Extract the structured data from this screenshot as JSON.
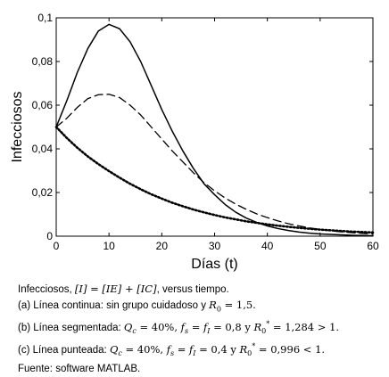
{
  "chart_data": {
    "type": "line",
    "xlabel": "Días (t)",
    "ylabel": "Infecciosos",
    "xlim": [
      0,
      60
    ],
    "ylim": [
      0,
      0.1
    ],
    "xticks": [
      0,
      10,
      20,
      30,
      40,
      50,
      60
    ],
    "yticks": [
      0,
      0.02,
      0.04,
      0.06,
      0.08,
      0.1
    ],
    "xtick_labels": [
      "0",
      "10",
      "20",
      "30",
      "40",
      "50",
      "60"
    ],
    "ytick_labels": [
      "0",
      "0,02",
      "0,04",
      "0,06",
      "0,08",
      "0,1"
    ],
    "grid": false,
    "x": [
      0,
      2,
      4,
      6,
      8,
      10,
      12,
      14,
      16,
      18,
      20,
      22,
      24,
      26,
      28,
      30,
      32,
      34,
      36,
      38,
      40,
      42,
      44,
      46,
      48,
      50,
      52,
      54,
      56,
      58,
      60
    ],
    "series": [
      {
        "style": "solid",
        "values": [
          0.05,
          0.062,
          0.075,
          0.086,
          0.094,
          0.097,
          0.095,
          0.089,
          0.08,
          0.069,
          0.058,
          0.048,
          0.039,
          0.031,
          0.024,
          0.019,
          0.0145,
          0.011,
          0.0083,
          0.0063,
          0.0047,
          0.0035,
          0.0026,
          0.0019,
          0.0014,
          0.001,
          0.0008,
          0.0006,
          0.0004,
          0.0003,
          0.0002
        ]
      },
      {
        "style": "dashed",
        "values": [
          0.05,
          0.054,
          0.059,
          0.063,
          0.0648,
          0.065,
          0.0635,
          0.06,
          0.0555,
          0.05,
          0.0445,
          0.039,
          0.034,
          0.029,
          0.0245,
          0.0208,
          0.0175,
          0.0147,
          0.0123,
          0.0102,
          0.0085,
          0.007,
          0.0057,
          0.0047,
          0.0038,
          0.0031,
          0.0025,
          0.002,
          0.0016,
          0.0013,
          0.001
        ]
      },
      {
        "style": "dotted",
        "values": [
          0.05,
          0.045,
          0.0405,
          0.0365,
          0.033,
          0.0298,
          0.0268,
          0.024,
          0.0215,
          0.0192,
          0.0172,
          0.0153,
          0.0137,
          0.0122,
          0.0109,
          0.0097,
          0.0086,
          0.0077,
          0.0068,
          0.0061,
          0.0054,
          0.0048,
          0.0043,
          0.0038,
          0.0034,
          0.003,
          0.0027,
          0.0024,
          0.0021,
          0.0019,
          0.0017
        ]
      }
    ]
  },
  "caption": {
    "line1": {
      "prefix": "Infecciosos, ",
      "math": "[I] = [IE] + [IC]",
      "suffix": ", versus tiempo."
    },
    "line2": {
      "prefix": "(a) Línea continua: sin grupo cuidadoso y ",
      "r_symbol": "R",
      "r_sub": "0",
      "r_value": " = 1,5."
    },
    "line3": {
      "prefix": "(b) Línea segmentada: ",
      "qc_symbol": "Q",
      "qc_sub": "c",
      "qc_value": " = 40%, ",
      "fs_symbol": "f",
      "fs_sub": "s",
      "fs_eq": " = ",
      "fi_symbol": "f",
      "fi_sub": "I",
      "fi_value": " = 0,8 y ",
      "r_symbol": "R",
      "r_sub": "0",
      "r_sup": "*",
      "r_value": " = 1,284 > 1."
    },
    "line4": {
      "prefix": "(c) Línea punteada: ",
      "qc_symbol": "Q",
      "qc_sub": "c",
      "qc_value": " = 40%, ",
      "fs_symbol": "f",
      "fs_sub": "s",
      "fs_eq": " = ",
      "fi_symbol": "f",
      "fi_sub": "I",
      "fi_value": " = 0,4 y ",
      "r_symbol": "R",
      "r_sub": "0",
      "r_sup": "*",
      "r_value": " = 0,996 < 1."
    },
    "source": "Fuente: software MATLAB."
  }
}
